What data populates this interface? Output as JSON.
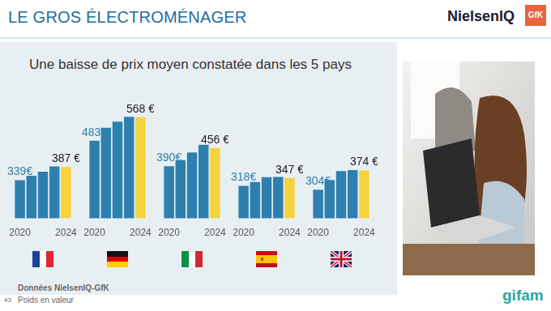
{
  "header": {
    "title": "LE GROS ÉLECTROMÉNAGER",
    "logo": "NielsenIQ",
    "logo2": "GfK"
  },
  "subtitle": "Une baisse de prix moyen constatée dans les 5 pays",
  "footer": {
    "source": "Données NielsenIQ-GfK",
    "note": "Poids en valeur",
    "page": "43",
    "brand": "gifam"
  },
  "chart_data": [
    {
      "type": "bar",
      "categories": [
        "2020",
        null,
        null,
        null,
        "2024"
      ],
      "values": [
        339,
        355,
        370,
        389,
        387
      ],
      "value_labels": [
        "339€",
        null,
        null,
        null,
        "387 €"
      ],
      "data_labels": true,
      "colors": [
        "#2e7fae",
        "#2e7fae",
        "#2e7fae",
        "#2e7fae",
        "#f5d33f"
      ],
      "ylim": [
        200,
        600
      ],
      "yticks": [
        200,
        300,
        400,
        500,
        600
      ],
      "grid": false,
      "tick_labels": "x"
    },
    {
      "type": "bar",
      "categories": [
        "2020",
        null,
        null,
        null,
        "2024"
      ],
      "values": [
        483,
        530,
        552,
        570,
        568
      ],
      "value_labels": [
        "483€",
        null,
        null,
        null,
        "568 €"
      ],
      "data_labels": true,
      "colors": [
        "#2e7fae",
        "#2e7fae",
        "#2e7fae",
        "#2e7fae",
        "#f5d33f"
      ],
      "ylim": [
        200,
        600
      ],
      "yticks": [
        200,
        300,
        400,
        500,
        600
      ],
      "grid": false,
      "tick_labels": "x"
    },
    {
      "type": "bar",
      "categories": [
        "2020",
        null,
        null,
        null,
        "2024"
      ],
      "values": [
        390,
        412,
        440,
        468,
        456
      ],
      "value_labels": [
        "390€",
        null,
        null,
        null,
        "456 €"
      ],
      "data_labels": true,
      "colors": [
        "#2e7fae",
        "#2e7fae",
        "#2e7fae",
        "#2e7fae",
        "#f5d33f"
      ],
      "ylim": [
        200,
        600
      ],
      "yticks": [
        200,
        300,
        400,
        500,
        600
      ],
      "grid": false,
      "tick_labels": "x"
    },
    {
      "type": "bar",
      "categories": [
        "2020",
        null,
        null,
        null,
        "2024"
      ],
      "values": [
        318,
        332,
        350,
        351,
        347
      ],
      "value_labels": [
        "318€",
        null,
        null,
        null,
        "347 €"
      ],
      "data_labels": true,
      "colors": [
        "#2e7fae",
        "#2e7fae",
        "#2e7fae",
        "#2e7fae",
        "#f5d33f"
      ],
      "ylim": [
        200,
        600
      ],
      "yticks": [
        200,
        300,
        400,
        500,
        600
      ],
      "grid": false,
      "tick_labels": "x"
    },
    {
      "type": "bar",
      "categories": [
        "2020",
        null,
        null,
        null,
        "2024"
      ],
      "values": [
        304,
        340,
        372,
        376,
        374
      ],
      "value_labels": [
        "304€",
        null,
        null,
        null,
        "374 €"
      ],
      "data_labels": true,
      "colors": [
        "#2e7fae",
        "#2e7fae",
        "#2e7fae",
        "#2e7fae",
        "#f5d33f"
      ],
      "ylim": [
        200,
        600
      ],
      "yticks": [
        200,
        300,
        400,
        500,
        600
      ],
      "grid": false,
      "tick_labels": "x"
    }
  ]
}
